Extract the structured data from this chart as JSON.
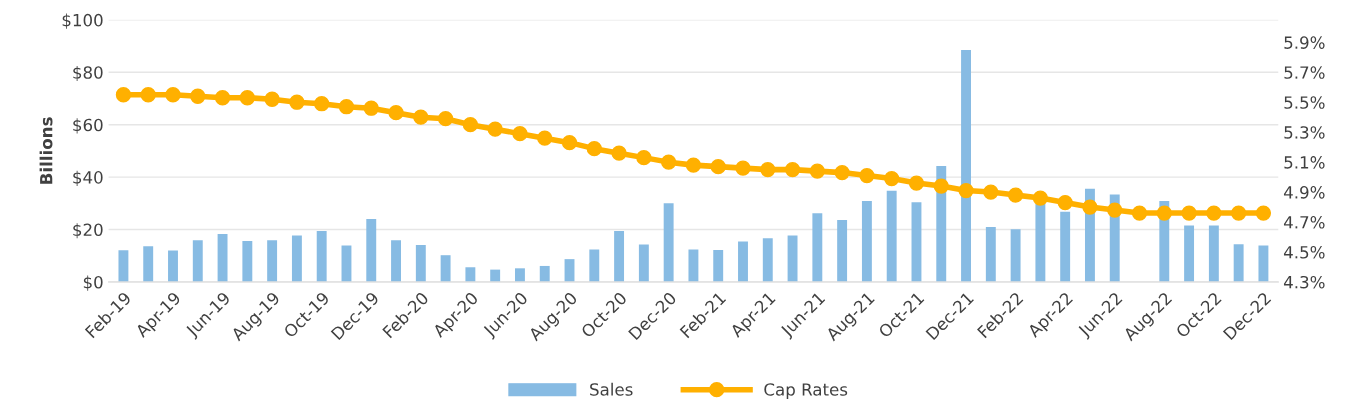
{
  "chart_data": {
    "type": "bar",
    "ylabel": "Billions",
    "categories": [
      "Feb-19",
      null,
      "Apr-19",
      null,
      "Jun-19",
      null,
      "Aug-19",
      null,
      "Oct-19",
      null,
      "Dec-19",
      null,
      "Feb-20",
      null,
      "Apr-20",
      null,
      "Jun-20",
      null,
      "Aug-20",
      null,
      "Oct-20",
      null,
      "Dec-20",
      null,
      "Feb-21",
      null,
      "Apr-21",
      null,
      "Jun-21",
      null,
      "Aug-21",
      null,
      "Oct-21",
      null,
      "Dec-21",
      null,
      "Feb-22",
      null,
      "Apr-22",
      null,
      "Jun-22",
      null,
      "Aug-22",
      null,
      "Oct-22",
      null,
      "Dec-22"
    ],
    "series": [
      {
        "name": "Sales",
        "color": "#87bbe3",
        "values": [
          12.1,
          13.6,
          12.0,
          15.9,
          18.3,
          15.6,
          15.9,
          17.7,
          19.4,
          13.9,
          24.0,
          15.9,
          14.1,
          10.2,
          5.6,
          4.7,
          5.2,
          6.1,
          8.7,
          12.4,
          19.4,
          14.3,
          30.0,
          12.4,
          12.2,
          15.4,
          16.7,
          17.7,
          26.2,
          23.6,
          30.9,
          34.8,
          30.4,
          44.2,
          88.5,
          21.0,
          20.1,
          29.7,
          26.8,
          35.6,
          33.4,
          null,
          30.9,
          21.5,
          21.5,
          14.4,
          13.9
        ]
      },
      {
        "name": "Cap Rates",
        "type": "line",
        "axis": "y2",
        "color": "#ffb000",
        "marker": "circle",
        "values": [
          5.55,
          5.55,
          5.55,
          5.54,
          5.53,
          5.53,
          5.52,
          5.5,
          5.49,
          5.47,
          5.46,
          5.43,
          5.4,
          5.39,
          5.35,
          5.32,
          5.29,
          5.26,
          5.23,
          5.19,
          5.16,
          5.13,
          5.1,
          5.08,
          5.07,
          5.06,
          5.05,
          5.05,
          5.04,
          5.03,
          5.01,
          4.99,
          4.96,
          4.94,
          4.91,
          4.9,
          4.88,
          4.86,
          4.83,
          4.8,
          4.78,
          4.76,
          4.76,
          4.76,
          4.76,
          4.76,
          4.76
        ]
      }
    ],
    "ylim": [
      0,
      100
    ],
    "yticks": [
      {
        "value": 0,
        "label": "$0"
      },
      {
        "value": 20,
        "label": "$20"
      },
      {
        "value": 40,
        "label": "$40"
      },
      {
        "value": 60,
        "label": "$60"
      },
      {
        "value": 80,
        "label": "$80"
      },
      {
        "value": 100,
        "label": "$100"
      }
    ],
    "y2lim": [
      4.3,
      6.05
    ],
    "y2ticks": [
      {
        "value": 4.3,
        "label": "4.3%"
      },
      {
        "value": 4.5,
        "label": "4.5%"
      },
      {
        "value": 4.7,
        "label": "4.7%"
      },
      {
        "value": 4.9,
        "label": "4.9%"
      },
      {
        "value": 5.1,
        "label": "5.1%"
      },
      {
        "value": 5.3,
        "label": "5.3%"
      },
      {
        "value": 5.5,
        "label": "5.5%"
      },
      {
        "value": 5.7,
        "label": "5.7%"
      },
      {
        "value": 5.9,
        "label": "5.9%"
      }
    ],
    "grid": "y",
    "legend": "bottom"
  }
}
